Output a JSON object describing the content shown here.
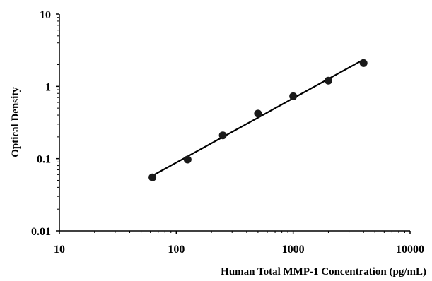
{
  "chart_data": {
    "type": "scatter",
    "title": "",
    "xlabel": "Human Total MMP-1 Concentration (pg/mL)",
    "ylabel": "Optical Density",
    "xscale": "log",
    "yscale": "log",
    "xlim": [
      10,
      10000
    ],
    "ylim": [
      0.01,
      10
    ],
    "x_ticks": [
      10,
      100,
      1000,
      10000
    ],
    "x_tick_labels": [
      "10",
      "100",
      "1000",
      "10000"
    ],
    "y_ticks": [
      0.01,
      0.1,
      1,
      10
    ],
    "y_tick_labels": [
      "0.01",
      "0.1",
      "1",
      "10"
    ],
    "grid": false,
    "legend": "none",
    "series": [
      {
        "x": [
          62.5,
          125,
          250,
          500,
          1000,
          2000,
          4000
        ],
        "y": [
          0.055,
          0.097,
          0.21,
          0.42,
          0.73,
          1.2,
          2.1
        ]
      }
    ],
    "trendline": {
      "type": "power",
      "x_range": [
        62.5,
        4000
      ],
      "y_range": [
        0.058,
        2.35
      ]
    },
    "colors": {
      "marker": "#1a1a1a",
      "line": "#000000",
      "axis": "#000000"
    }
  }
}
